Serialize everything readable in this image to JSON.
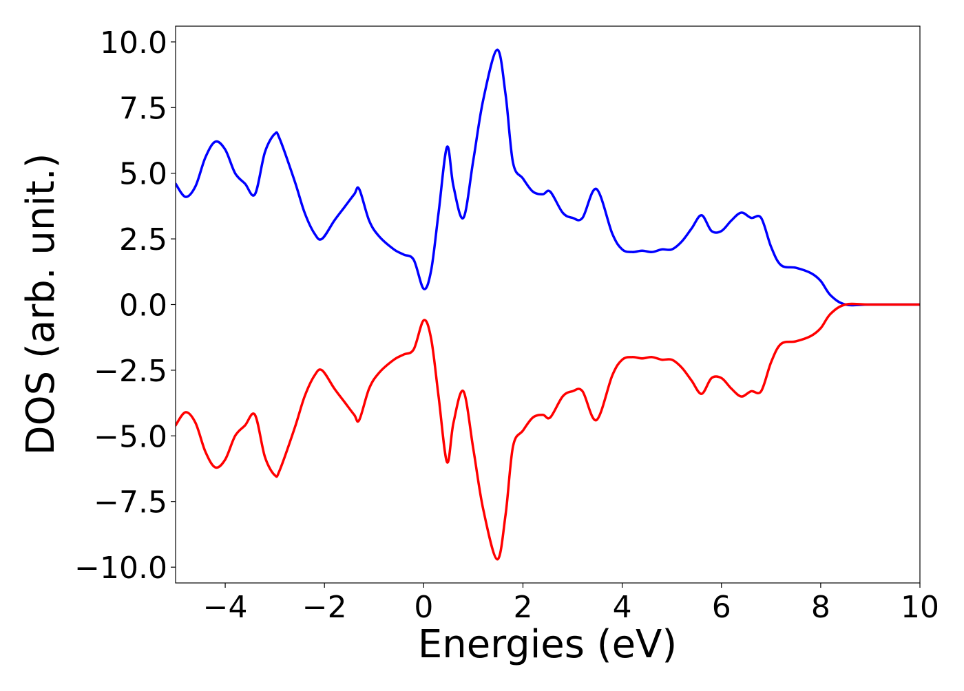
{
  "chart_data": {
    "type": "line",
    "title": "",
    "xlabel": "Energies (eV)",
    "ylabel": "DOS (arb. unit.)",
    "xlim": [
      -5,
      10
    ],
    "ylim": [
      -10.6,
      10.6
    ],
    "xticks": [
      -4,
      -2,
      0,
      2,
      4,
      6,
      8,
      10
    ],
    "xtick_labels": [
      "−4",
      "−2",
      "0",
      "2",
      "4",
      "6",
      "8",
      "10"
    ],
    "yticks": [
      10.0,
      7.5,
      5.0,
      2.5,
      0.0,
      -2.5,
      -5.0,
      -7.5,
      -10.0
    ],
    "ytick_labels": [
      "10.0",
      "7.5",
      "5.0",
      "2.5",
      "0.0",
      "−2.5",
      "−5.0",
      "−7.5",
      "−10.0"
    ],
    "grid": false,
    "series": [
      {
        "color": "#0000ff",
        "x": [
          -5.0,
          -4.8,
          -4.6,
          -4.4,
          -4.2,
          -4.0,
          -3.8,
          -3.6,
          -3.4,
          -3.2,
          -3.0,
          -2.9,
          -2.6,
          -2.4,
          -2.2,
          -2.05,
          -1.8,
          -1.6,
          -1.4,
          -1.3,
          -1.1,
          -0.9,
          -0.6,
          -0.4,
          -0.2,
          0.0,
          0.15,
          0.3,
          0.47,
          0.6,
          0.8,
          1.0,
          1.2,
          1.48,
          1.65,
          1.8,
          2.0,
          2.2,
          2.4,
          2.55,
          2.8,
          3.0,
          3.2,
          3.48,
          3.8,
          4.0,
          4.2,
          4.4,
          4.6,
          4.8,
          5.0,
          5.2,
          5.4,
          5.6,
          5.8,
          6.0,
          6.2,
          6.4,
          6.6,
          6.8,
          7.0,
          7.2,
          7.5,
          7.8,
          8.0,
          8.2,
          8.5,
          9.0,
          10.0
        ],
        "values": [
          4.6,
          4.1,
          4.5,
          5.6,
          6.2,
          5.9,
          5.0,
          4.6,
          4.2,
          5.8,
          6.5,
          6.3,
          4.7,
          3.5,
          2.7,
          2.5,
          3.2,
          3.7,
          4.2,
          4.4,
          3.2,
          2.6,
          2.1,
          1.9,
          1.7,
          0.6,
          1.3,
          3.5,
          6.0,
          4.5,
          3.3,
          5.5,
          7.8,
          9.7,
          8.0,
          5.4,
          4.8,
          4.3,
          4.2,
          4.3,
          3.5,
          3.3,
          3.3,
          4.4,
          2.7,
          2.1,
          2.0,
          2.05,
          2.0,
          2.1,
          2.1,
          2.4,
          2.9,
          3.4,
          2.8,
          2.8,
          3.2,
          3.5,
          3.3,
          3.3,
          2.2,
          1.5,
          1.4,
          1.2,
          0.9,
          0.35,
          0.0,
          0.0,
          0.0
        ]
      },
      {
        "color": "#ff0000",
        "x": [
          -5.0,
          -4.8,
          -4.6,
          -4.4,
          -4.2,
          -4.0,
          -3.8,
          -3.6,
          -3.4,
          -3.2,
          -3.0,
          -2.9,
          -2.6,
          -2.4,
          -2.2,
          -2.05,
          -1.8,
          -1.6,
          -1.4,
          -1.3,
          -1.1,
          -0.9,
          -0.6,
          -0.4,
          -0.2,
          0.0,
          0.15,
          0.3,
          0.47,
          0.6,
          0.8,
          1.0,
          1.2,
          1.48,
          1.65,
          1.8,
          2.0,
          2.2,
          2.4,
          2.55,
          2.8,
          3.0,
          3.2,
          3.48,
          3.8,
          4.0,
          4.2,
          4.4,
          4.6,
          4.8,
          5.0,
          5.2,
          5.4,
          5.6,
          5.8,
          6.0,
          6.2,
          6.4,
          6.6,
          6.8,
          7.0,
          7.2,
          7.5,
          7.8,
          8.0,
          8.2,
          8.5,
          9.0,
          10.0
        ],
        "values": [
          -4.6,
          -4.1,
          -4.5,
          -5.6,
          -6.2,
          -5.9,
          -5.0,
          -4.6,
          -4.2,
          -5.8,
          -6.5,
          -6.3,
          -4.7,
          -3.5,
          -2.7,
          -2.5,
          -3.2,
          -3.7,
          -4.2,
          -4.4,
          -3.2,
          -2.6,
          -2.1,
          -1.9,
          -1.7,
          -0.6,
          -1.3,
          -3.5,
          -6.0,
          -4.5,
          -3.3,
          -5.5,
          -7.8,
          -9.7,
          -8.0,
          -5.4,
          -4.8,
          -4.3,
          -4.2,
          -4.3,
          -3.5,
          -3.3,
          -3.3,
          -4.4,
          -2.7,
          -2.1,
          -2.0,
          -2.05,
          -2.0,
          -2.1,
          -2.1,
          -2.4,
          -2.9,
          -3.4,
          -2.8,
          -2.8,
          -3.2,
          -3.5,
          -3.3,
          -3.3,
          -2.2,
          -1.5,
          -1.4,
          -1.2,
          -0.9,
          -0.35,
          0.0,
          0.0,
          0.0
        ]
      }
    ]
  }
}
